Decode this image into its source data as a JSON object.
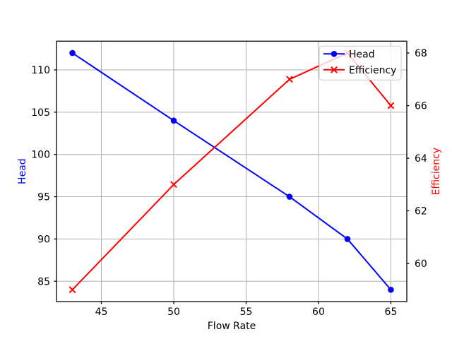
{
  "chart_data": {
    "type": "line",
    "title": "",
    "x": [
      43,
      50,
      58,
      62,
      65
    ],
    "series": [
      {
        "name": "Head",
        "axis": "left",
        "color": "#0000ff",
        "marker": "circle",
        "values": [
          112,
          104,
          95,
          90,
          84
        ]
      },
      {
        "name": "Efficiency",
        "axis": "right",
        "color": "#ff0000",
        "marker": "x",
        "values": [
          59,
          63,
          67,
          68,
          66
        ]
      }
    ],
    "axes": {
      "x": {
        "label": "Flow Rate",
        "color": "#000000",
        "ticks": [
          45,
          50,
          55,
          60,
          65
        ],
        "lim": [
          41.9,
          66.1
        ]
      },
      "left": {
        "label": "Head",
        "color": "#0000ff",
        "ticks": [
          85,
          90,
          95,
          100,
          105,
          110
        ],
        "lim": [
          82.6,
          113.4
        ]
      },
      "right": {
        "label": "Efficiency",
        "color": "#ff0000",
        "ticks": [
          60,
          62,
          64,
          66,
          68
        ],
        "lim": [
          58.55,
          68.45
        ]
      }
    },
    "grid": true,
    "legend": {
      "position": "upper right",
      "entries": [
        "Head",
        "Efficiency"
      ]
    },
    "colors": {
      "background": "#ffffff",
      "grid": "#b0b0b0",
      "spine": "#000000",
      "tick_text": "#000000",
      "legend_edge": "#cccccc",
      "legend_face": "#ffffff"
    }
  }
}
